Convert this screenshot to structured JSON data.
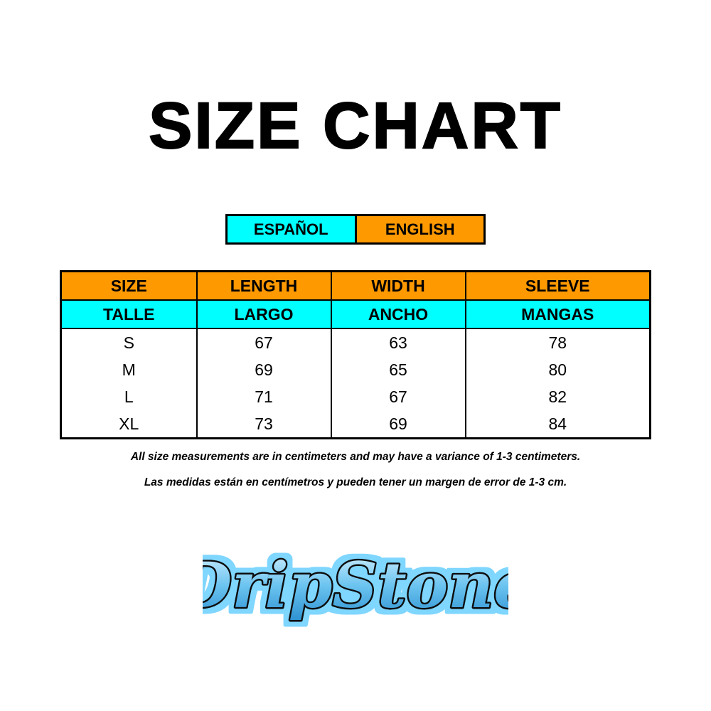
{
  "title": "SIZE CHART",
  "legend": {
    "espanol": "ESPAÑOL",
    "english": "ENGLISH"
  },
  "colors": {
    "english": "#ff9900",
    "espanol": "#00ffff"
  },
  "table": {
    "header_en": [
      "SIZE",
      "LENGTH",
      "WIDTH",
      "SLEEVE"
    ],
    "header_es": [
      "TALLE",
      "LARGO",
      "ANCHO",
      "MANGAS"
    ],
    "rows": [
      [
        "S",
        "67",
        "63",
        "78"
      ],
      [
        "M",
        "69",
        "65",
        "80"
      ],
      [
        "L",
        "71",
        "67",
        "82"
      ],
      [
        "XL",
        "73",
        "69",
        "84"
      ]
    ]
  },
  "notes": {
    "en": "All size measurements are in centimeters and may have a variance of 1-3 centimeters.",
    "es": "Las medidas están en centímetros y pueden tener un margen de error de 1-3 cm."
  },
  "logo": {
    "text": "DripStone"
  }
}
